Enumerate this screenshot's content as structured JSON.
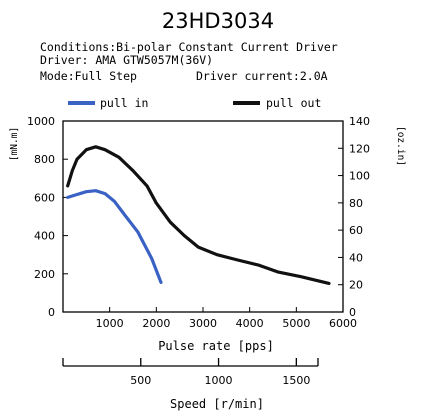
{
  "chart_data": {
    "type": "line",
    "title": "23HD3034",
    "conditions": [
      "Conditions:Bi-polar Constant Current Driver",
      "Driver: AMA GTW5057M(36V)"
    ],
    "mode": "Mode:Full Step",
    "driver_current": "Driver current:2.0A",
    "xlabel": "Pulse rate [pps]",
    "ylabel_left": "[mN.m]",
    "ylabel_right": "[oz.in]",
    "xlabel_speed": "Speed [r/min]",
    "xlim": [
      0,
      6000
    ],
    "ylim_left": [
      0,
      1000
    ],
    "ylim_right": [
      0,
      140
    ],
    "xticks": [
      1000,
      2000,
      3000,
      4000,
      5000,
      6000
    ],
    "yticks_left": [
      0,
      200,
      400,
      600,
      800,
      1000
    ],
    "yticks_right": [
      0,
      20,
      40,
      60,
      80,
      100,
      120,
      140
    ],
    "speed_ticks": [
      500,
      1000,
      1500
    ],
    "legend_position": "top",
    "colors": {
      "pull_in": "#3a62c4",
      "pull_out": "#111111"
    },
    "series": [
      {
        "name": "pull in",
        "x": [
          100,
          300,
          500,
          700,
          900,
          1100,
          1300,
          1600,
          1900,
          2100
        ],
        "y": [
          600,
          615,
          630,
          635,
          620,
          580,
          515,
          420,
          280,
          155
        ]
      },
      {
        "name": "pull out",
        "x": [
          100,
          200,
          300,
          500,
          700,
          900,
          1200,
          1500,
          1800,
          2000,
          2300,
          2600,
          2900,
          3300,
          3700,
          4200,
          4600,
          5100,
          5700
        ],
        "y": [
          660,
          740,
          800,
          850,
          865,
          850,
          810,
          740,
          660,
          570,
          470,
          400,
          340,
          300,
          275,
          245,
          210,
          185,
          150
        ]
      }
    ]
  }
}
